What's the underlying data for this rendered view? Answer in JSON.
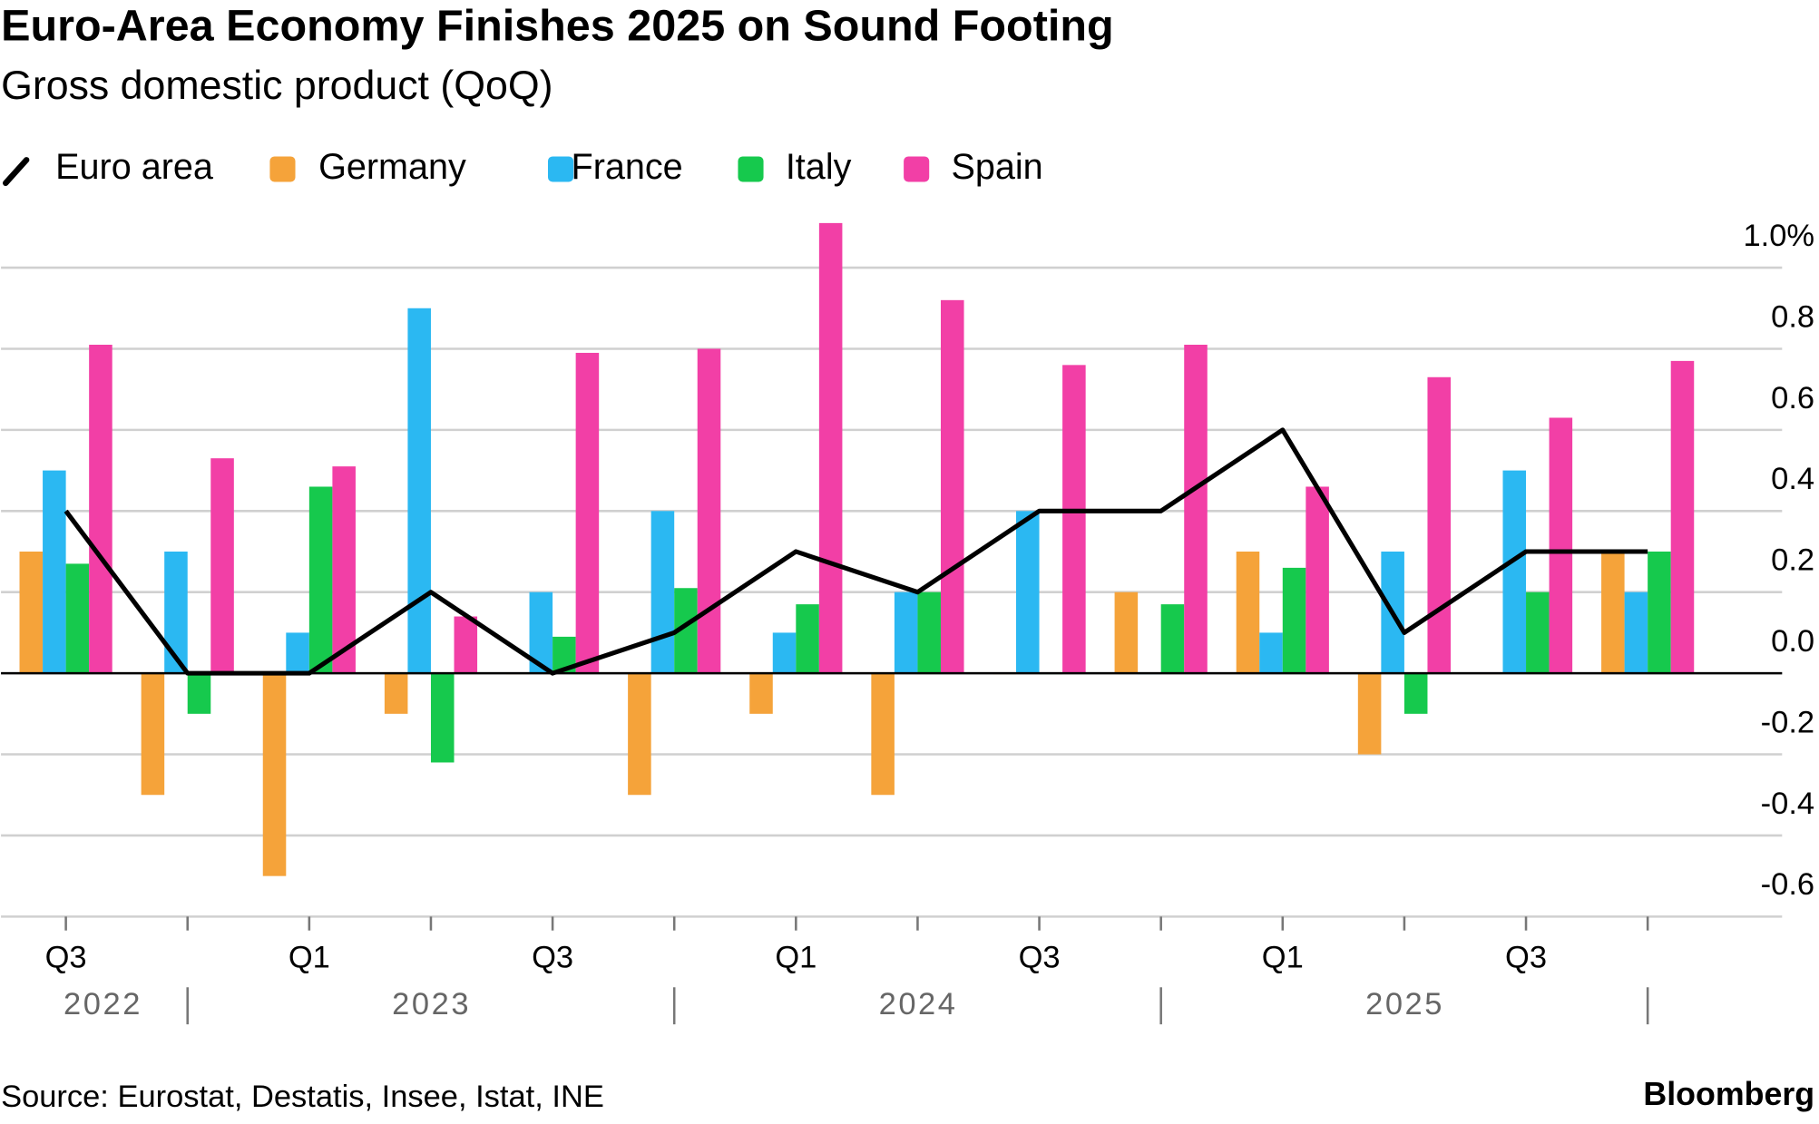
{
  "chart_data": {
    "type": "bar",
    "title": "Euro-Area Economy Finishes 2025 on Sound Footing",
    "subtitle": "Gross domestic product (QoQ)",
    "source": "Source: Eurostat, Destatis, Insee, Istat, INE",
    "brand": "Bloomberg",
    "categories": [
      "Q3",
      null,
      "Q1",
      null,
      "Q3",
      null,
      "Q1",
      null,
      "Q3",
      null,
      "Q1",
      null,
      "Q3",
      null
    ],
    "years": [
      "2022",
      "2023",
      "2024",
      "2025"
    ],
    "series": [
      {
        "name": "Euro area",
        "type": "line",
        "color": "#000000",
        "values": [
          0.4,
          0.0,
          0.0,
          0.2,
          0.0,
          0.1,
          0.3,
          0.2,
          0.4,
          0.4,
          0.6,
          0.1,
          0.3,
          0.3
        ]
      },
      {
        "name": "Germany",
        "color": "#f5a33a",
        "values": [
          0.3,
          -0.3,
          -0.5,
          -0.1,
          0.0,
          -0.3,
          -0.1,
          -0.3,
          0.0,
          0.2,
          0.3,
          -0.2,
          0.0,
          0.3
        ]
      },
      {
        "name": "France",
        "color": "#2bb8f2",
        "values": [
          0.5,
          0.3,
          0.1,
          0.9,
          0.2,
          0.4,
          0.1,
          0.2,
          0.4,
          0.0,
          0.1,
          0.3,
          0.5,
          0.2
        ]
      },
      {
        "name": "Italy",
        "color": "#16c94d",
        "values": [
          0.27,
          -0.1,
          0.46,
          -0.22,
          0.09,
          0.21,
          0.17,
          0.2,
          0.0,
          0.17,
          0.26,
          -0.1,
          0.2,
          0.3
        ]
      },
      {
        "name": "Spain",
        "color": "#f23fa6",
        "values": [
          0.81,
          0.53,
          0.51,
          0.14,
          0.79,
          0.8,
          1.11,
          0.92,
          0.76,
          0.81,
          0.46,
          0.73,
          0.63,
          0.77
        ]
      }
    ],
    "ylim": [
      -0.6,
      1.12
    ],
    "yticks": [
      {
        "value": 1.0,
        "label": "1.0%"
      },
      0.8,
      0.6,
      0.4,
      0.2,
      {
        "value": 0,
        "label": "0.0"
      },
      -0.2,
      -0.4,
      -0.6
    ],
    "grid": true
  }
}
